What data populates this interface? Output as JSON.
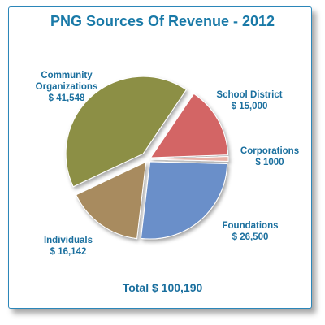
{
  "chart_data": {
    "type": "pie",
    "title": "PNG Sources Of Revenue - 2012",
    "slices": [
      {
        "label": "School District",
        "value_label": "$ 15,000",
        "value": 15000,
        "color": "#d36565"
      },
      {
        "label": "Corporations",
        "value_label": "$ 1000",
        "value": 1000,
        "color": "#e8b3a8"
      },
      {
        "label": "Foundations",
        "value_label": "$ 26,500",
        "value": 26500,
        "color": "#6b8fc9"
      },
      {
        "label": "Individuals",
        "value_label": "$ 16,142",
        "value": 16142,
        "color": "#a88b5f"
      },
      {
        "label": "Community Organizations",
        "value_label": "$ 41,548",
        "value": 41548,
        "color": "#8c8f45"
      }
    ],
    "total_label": "Total  $ 100,190"
  }
}
